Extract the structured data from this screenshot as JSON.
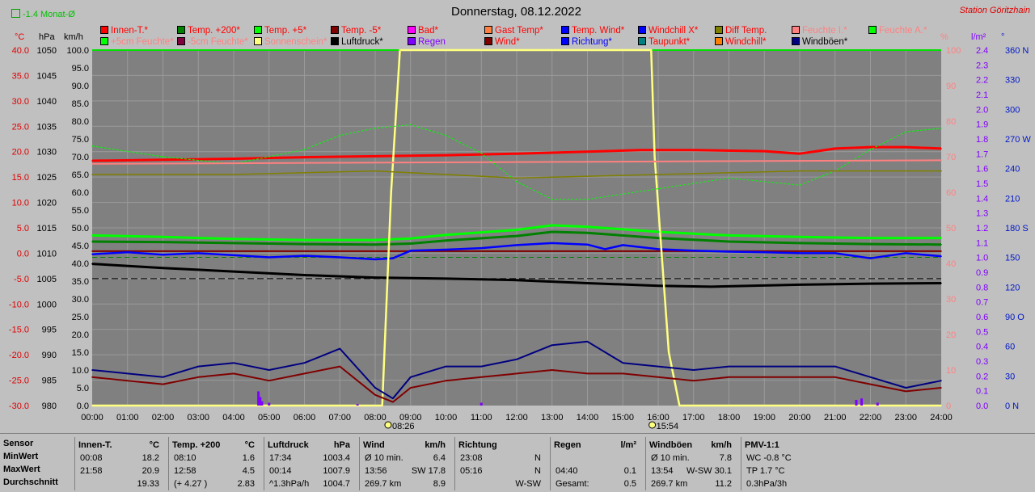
{
  "title": "Donnerstag, 08.12.2022",
  "station": "Station Göritzhain",
  "monthly_indicator": "-1.4 Monat-Ø",
  "colors": {
    "background": "#c0c0c0",
    "plot_bg": "#808080",
    "grid": "#9a9a9a",
    "red": "#e10000",
    "blue": "#0018ff",
    "navy": "#0000c8",
    "purple": "#8000ff",
    "pink": "#ff8080"
  },
  "axes": {
    "units": {
      "temp": "°C",
      "pressure": "hPa",
      "speed": "km/h",
      "percent": "%",
      "rain": "l/m²",
      "direction": "°"
    },
    "temp_ticks": [
      "40.0",
      "35.0",
      "30.0",
      "25.0",
      "20.0",
      "15.0",
      "10.0",
      "5.0",
      "0.0",
      "-5.0",
      "-10.0",
      "-15.0",
      "-20.0",
      "-25.0",
      "-30.0"
    ],
    "pressure_ticks": [
      "1050",
      "1045",
      "1040",
      "1035",
      "1030",
      "1025",
      "1020",
      "1015",
      "1010",
      "1005",
      "1000",
      "995",
      "990",
      "985",
      "980"
    ],
    "speed_ticks": [
      "100.0",
      "95.0",
      "90.0",
      "85.0",
      "80.0",
      "75.0",
      "70.0",
      "65.0",
      "60.0",
      "55.0",
      "50.0",
      "45.0",
      "40.0",
      "35.0",
      "30.0",
      "25.0",
      "20.0",
      "15.0",
      "10.0",
      "5.0",
      "0.0"
    ],
    "percent_ticks": [
      "100",
      "90",
      "80",
      "70",
      "60",
      "50",
      "40",
      "30",
      "20",
      "10",
      "0"
    ],
    "rain_ticks": [
      "2.4",
      "2.3",
      "2.2",
      "2.1",
      "2.0",
      "1.9",
      "1.8",
      "1.7",
      "1.6",
      "1.5",
      "1.4",
      "1.3",
      "1.2",
      "1.1",
      "1.0",
      "0.9",
      "0.8",
      "0.7",
      "0.6",
      "0.5",
      "0.4",
      "0.3",
      "0.2",
      "0.1",
      "0.0"
    ],
    "direction_ticks": [
      "360 N",
      "330",
      "300",
      "270 W",
      "240",
      "210",
      "180 S",
      "150",
      "120",
      "90 O",
      "60",
      "30",
      "0 N"
    ],
    "time_ticks": [
      "00:00",
      "01:00",
      "02:00",
      "03:00",
      "04:00",
      "05:00",
      "06:00",
      "07:00",
      "08:00",
      "09:00",
      "10:00",
      "11:00",
      "12:00",
      "13:00",
      "14:00",
      "15:00",
      "16:00",
      "17:00",
      "18:00",
      "19:00",
      "20:00",
      "21:00",
      "22:00",
      "23:00",
      "24:00"
    ],
    "sunrise": "08:26",
    "sunset": "15:54"
  },
  "legend": [
    {
      "label": "Innen-T.*",
      "color": "#ff0000",
      "text_color": "#ff0000"
    },
    {
      "label": "Temp. +200*",
      "color": "#008000",
      "text_color": "#ff0000"
    },
    {
      "label": "Temp. +5*",
      "color": "#00ff00",
      "text_color": "#ff0000"
    },
    {
      "label": "Temp. -5*",
      "color": "#800000",
      "text_color": "#ff0000"
    },
    {
      "label": "Bad*",
      "color": "#ff00ff",
      "text_color": "#ff0000"
    },
    {
      "label": "Gast Temp*",
      "color": "#ff8040",
      "text_color": "#ff0000"
    },
    {
      "label": "Temp. Wind*",
      "color": "#0000ff",
      "text_color": "#ff0000"
    },
    {
      "label": "Windchill X*",
      "color": "#0000ff",
      "text_color": "#ff0000"
    },
    {
      "label": "Diff Temp.",
      "color": "#808000",
      "text_color": "#ff0000"
    },
    {
      "label": "Feuchte I.*",
      "color": "#ff8080",
      "text_color": "#ff8080"
    },
    {
      "label": "Feuchte A.*",
      "color": "#00ff00",
      "text_color": "#ff8080"
    },
    {
      "label": "+5cm Feuchte*",
      "color": "#00ff00",
      "text_color": "#ff8080"
    },
    {
      "label": "-5cm Feuchte*",
      "color": "#800040",
      "text_color": "#ff8080"
    },
    {
      "label": "Sonnenschein*",
      "color": "#ffff80",
      "text_color": "#ff8080"
    },
    {
      "label": "Luftdruck*",
      "color": "#000000",
      "text_color": "#000000"
    },
    {
      "label": "Regen",
      "color": "#8000ff",
      "text_color": "#8000ff"
    },
    {
      "label": "Wind*",
      "color": "#800000",
      "text_color": "#ff0000"
    },
    {
      "label": "Richtung*",
      "color": "#0000ff",
      "text_color": "#0000ff"
    },
    {
      "label": "Taupunkt*",
      "color": "#008080",
      "text_color": "#ff0000"
    },
    {
      "label": "Windchill*",
      "color": "#ff8000",
      "text_color": "#ff0000"
    },
    {
      "label": "Windböen*",
      "color": "#000080",
      "text_color": "#000000"
    }
  ],
  "stats": {
    "row_labels": [
      "Sensor",
      "MinWert",
      "MaxWert",
      "Durchschnitt"
    ],
    "columns": [
      {
        "name": "Innen-T.",
        "unit": "°C",
        "rows": [
          [
            "00:08",
            "18.2"
          ],
          [
            "21:58",
            "20.9"
          ],
          [
            "",
            "19.33"
          ]
        ]
      },
      {
        "name": "Temp. +200",
        "unit": "°C",
        "rows": [
          [
            "08:10",
            "1.6"
          ],
          [
            "12:58",
            "4.5"
          ],
          [
            "(+ 4.27 )",
            "2.83"
          ]
        ]
      },
      {
        "name": "Luftdruck",
        "unit": "hPa",
        "rows": [
          [
            "17:34",
            "1003.4"
          ],
          [
            "00:14",
            "1007.9"
          ],
          [
            "^1.3hPa/h",
            "1004.7"
          ]
        ]
      },
      {
        "name": "Wind",
        "unit": "km/h",
        "rows": [
          [
            "Ø 10 min.",
            "6.4"
          ],
          [
            "13:56",
            "SW 17.8"
          ],
          [
            "269.7 km",
            "8.9"
          ]
        ]
      },
      {
        "name": "Richtung",
        "unit": "",
        "rows": [
          [
            "23:08",
            "N"
          ],
          [
            "05:16",
            "N"
          ],
          [
            "",
            "W-SW"
          ]
        ]
      },
      {
        "name": "Regen",
        "unit": "l/m²",
        "rows": [
          [
            "",
            ""
          ],
          [
            "04:40",
            "0.1"
          ],
          [
            "Gesamt:",
            "0.5"
          ]
        ]
      },
      {
        "name": "Windböen",
        "unit": "km/h",
        "rows": [
          [
            "Ø 10 min.",
            "7.8"
          ],
          [
            "13:54",
            "W-SW 30.1"
          ],
          [
            "269.7 km",
            "11.2"
          ]
        ]
      },
      {
        "name": "PMV-1:1",
        "unit": "",
        "rows": [
          [
            "WC -0.8 °C",
            ""
          ],
          [
            "TP 1.7 °C",
            ""
          ],
          [
            "0.3hPa/3h",
            ""
          ]
        ]
      }
    ]
  },
  "chart_data": {
    "type": "line",
    "x_unit": "hour",
    "xlim": [
      0,
      24
    ],
    "temp_ylim": [
      -30,
      40
    ],
    "series": [
      {
        "name": "Innen-T.*",
        "axis": "temp",
        "color": "#ff0000",
        "x": [
          0,
          2,
          4,
          6,
          8,
          10,
          12,
          14,
          15.5,
          17,
          19,
          20,
          21,
          22,
          23,
          24
        ],
        "y": [
          18.2,
          18.4,
          18.6,
          18.9,
          19.1,
          19.3,
          19.6,
          20.0,
          20.3,
          20.3,
          20.1,
          19.6,
          20.6,
          20.9,
          20.9,
          20.6
        ]
      },
      {
        "name": "Temp. +200*",
        "axis": "temp",
        "color": "#008000",
        "x": [
          0,
          2,
          4,
          6,
          8,
          9,
          10,
          12,
          13,
          14,
          16,
          18,
          20,
          22,
          24
        ],
        "y": [
          2.3,
          2.2,
          2.0,
          1.8,
          1.7,
          1.9,
          2.5,
          3.4,
          4.2,
          4.0,
          3.0,
          2.3,
          2.0,
          1.8,
          1.7
        ]
      },
      {
        "name": "Temp. +5*",
        "axis": "temp",
        "color": "#00ff00",
        "x": [
          0,
          2,
          4,
          6,
          8,
          9,
          10,
          12,
          13,
          14,
          16,
          18,
          20,
          22,
          24
        ],
        "y": [
          3.5,
          3.2,
          2.8,
          2.6,
          2.6,
          2.9,
          3.6,
          4.6,
          5.5,
          5.2,
          4.2,
          3.5,
          3.2,
          3.0,
          3.0
        ]
      },
      {
        "name": "Temp. -5*",
        "axis": "temp",
        "color": "#800000",
        "x": [
          0,
          24
        ],
        "y": [
          0.4,
          0.4
        ]
      },
      {
        "name": "Temp. Wind*",
        "axis": "temp",
        "color": "#0000ff",
        "x": [
          0,
          1,
          2,
          3,
          4,
          5,
          6,
          7,
          8,
          8.5,
          9,
          10,
          11,
          12,
          13,
          14,
          14.5,
          15,
          16,
          17,
          18,
          19,
          20,
          21,
          22,
          23,
          24
        ],
        "y": [
          -0.2,
          0.2,
          -0.3,
          0.0,
          -0.4,
          -0.8,
          -0.5,
          -0.8,
          -1.2,
          -1.0,
          0.5,
          0.7,
          1.0,
          1.6,
          2.0,
          1.7,
          0.8,
          1.6,
          0.8,
          0.5,
          0.3,
          0.2,
          0.0,
          0.0,
          -1.0,
          0.0,
          -0.6
        ]
      },
      {
        "name": "Luftdruck*",
        "axis": "pressure",
        "color": "#000000",
        "x": [
          0,
          2,
          4,
          6,
          8,
          10,
          12,
          14,
          16,
          17.5,
          20,
          22,
          24
        ],
        "y": [
          1007.9,
          1007.1,
          1006.4,
          1005.7,
          1005.2,
          1005.0,
          1004.7,
          1004.1,
          1003.6,
          1003.4,
          1003.8,
          1004.0,
          1004.1
        ]
      },
      {
        "name": "Sonnenschein*",
        "axis": "percent",
        "color": "#ffff80",
        "x": [
          0,
          8.2,
          8.45,
          8.7,
          15.8,
          15.9,
          16.3,
          16.6,
          24
        ],
        "y": [
          0,
          0,
          60,
          100,
          100,
          70,
          15,
          0,
          0
        ]
      },
      {
        "name": "Wind*",
        "axis": "speed",
        "color": "#800000",
        "x": [
          0,
          1,
          2,
          3,
          4,
          5,
          6,
          7,
          8,
          8.5,
          9,
          10,
          11,
          12,
          13,
          14,
          15,
          16,
          17,
          18,
          19,
          20,
          21,
          22,
          23,
          24
        ],
        "y": [
          8,
          7,
          6,
          8,
          9,
          7,
          9,
          11,
          3,
          1,
          5,
          7,
          8,
          9,
          10,
          9,
          9,
          8,
          7,
          8,
          8,
          8,
          8,
          6,
          4,
          5
        ]
      },
      {
        "name": "Windböen*",
        "axis": "speed",
        "color": "#000080",
        "x": [
          0,
          1,
          2,
          3,
          4,
          5,
          6,
          7,
          8,
          8.5,
          9,
          10,
          11,
          12,
          13,
          14,
          15,
          16,
          17,
          18,
          19,
          20,
          21,
          22,
          23,
          24
        ],
        "y": [
          10,
          9,
          8,
          11,
          12,
          10,
          12,
          16,
          5,
          2,
          8,
          11,
          11,
          13,
          17,
          18,
          12,
          11,
          10,
          11,
          11,
          11,
          11,
          8,
          5,
          7
        ]
      },
      {
        "name": "Feuchte A.*",
        "axis": "percent",
        "color": "#00ff00",
        "x": [
          0,
          2,
          4,
          6,
          7,
          8,
          9,
          10,
          11,
          12,
          13,
          14,
          16,
          18,
          20,
          21,
          22,
          23,
          24
        ],
        "y": [
          73,
          70,
          68,
          72,
          76,
          78,
          79,
          76,
          71,
          63,
          58,
          58,
          61,
          64,
          62,
          66,
          72,
          77,
          78
        ]
      },
      {
        "name": "Feuchte I.*",
        "axis": "percent",
        "color": "#ff8080",
        "x": [
          0,
          24
        ],
        "y": [
          68,
          69
        ]
      },
      {
        "name": "Diff Temp.",
        "axis": "percent",
        "color": "#808000",
        "x": [
          0,
          4,
          8,
          12,
          16,
          20,
          24
        ],
        "y": [
          65,
          65,
          66,
          64,
          65,
          66,
          66
        ]
      },
      {
        "name": "Regen",
        "axis": "rain",
        "color": "#8000ff",
        "x": [
          4.7,
          4.75,
          4.8,
          5.0,
          7.5,
          11.0,
          21.6,
          21.75,
          22.2
        ],
        "y": [
          0.1,
          0.06,
          0.03,
          0.02,
          0.01,
          0.02,
          0.04,
          0.05,
          0.02
        ]
      }
    ]
  }
}
